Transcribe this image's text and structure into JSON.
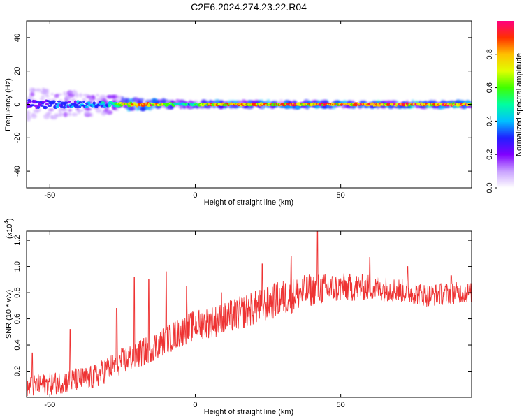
{
  "title": "C2E6.2024.274.23.22.R04",
  "chart_data": [
    {
      "type": "heatmap",
      "xlabel": "Height of straight line (km)",
      "ylabel": "Frequency (Hz)",
      "xlim": [
        -58,
        95
      ],
      "ylim": [
        -50,
        50
      ],
      "xticks": [
        -50,
        0,
        50
      ],
      "yticks": [
        -40,
        -20,
        0,
        20,
        40
      ],
      "colorbar": {
        "label": "Normalized spectral amplitude",
        "range": [
          0,
          1
        ],
        "ticks": [
          0.0,
          0.2,
          0.4,
          0.6,
          0.8
        ],
        "tick_labels": [
          "0.0",
          "0.2",
          "0.4",
          "0.6",
          "0.8"
        ],
        "colormap": [
          "#ffffff",
          "#c8a0ff",
          "#8000ff",
          "#2020ff",
          "#00c0ff",
          "#00ffa0",
          "#40ff00",
          "#e0ff00",
          "#ffc000",
          "#ff3000",
          "#ff0080"
        ]
      },
      "ridge": {
        "frequency_hz": 0,
        "spread_hz": [
          [
            -58,
            6
          ],
          [
            -45,
            5
          ],
          [
            -35,
            4
          ],
          [
            -28,
            3
          ],
          [
            -20,
            2
          ],
          [
            -10,
            1.5
          ],
          [
            0,
            1
          ],
          [
            50,
            1
          ],
          [
            95,
            1
          ]
        ],
        "intensity": [
          [
            -58,
            0.3
          ],
          [
            -45,
            0.35
          ],
          [
            -35,
            0.4
          ],
          [
            -28,
            0.5
          ],
          [
            -24,
            0.85
          ],
          [
            -15,
            0.9
          ],
          [
            -8,
            0.6
          ],
          [
            -2,
            0.5
          ],
          [
            5,
            0.85
          ],
          [
            50,
            0.95
          ],
          [
            95,
            0.95
          ]
        ]
      },
      "grid": false
    },
    {
      "type": "line",
      "xlabel": "Height of straight line (km)",
      "ylabel": "SNR (10 * v/v)",
      "y_multiplier_label": "(x10",
      "y_multiplier_exp": "4",
      "y_multiplier_close": ")",
      "xlim": [
        -58,
        95
      ],
      "ylim": [
        0.0,
        1.27
      ],
      "xticks": [
        -50,
        0,
        50
      ],
      "yticks": [
        0.2,
        0.4,
        0.6,
        0.8,
        1.0,
        1.2
      ],
      "ytick_labels": [
        "0.2",
        "0.4",
        "0.6",
        "0.8",
        "1.0",
        "1.2"
      ],
      "series": [
        {
          "color": "#ee3333",
          "trend": [
            [
              -58,
              0.08
            ],
            [
              -45,
              0.12
            ],
            [
              -35,
              0.15
            ],
            [
              -30,
              0.22
            ],
            [
              -25,
              0.28
            ],
            [
              -20,
              0.32
            ],
            [
              -15,
              0.38
            ],
            [
              -10,
              0.44
            ],
            [
              -5,
              0.5
            ],
            [
              0,
              0.55
            ],
            [
              10,
              0.6
            ],
            [
              20,
              0.68
            ],
            [
              30,
              0.76
            ],
            [
              40,
              0.82
            ],
            [
              50,
              0.84
            ],
            [
              60,
              0.84
            ],
            [
              70,
              0.82
            ],
            [
              80,
              0.78
            ],
            [
              90,
              0.8
            ],
            [
              95,
              0.8
            ]
          ],
          "noise_amplitude": [
            [
              -58,
              0.08
            ],
            [
              -30,
              0.1
            ],
            [
              0,
              0.12
            ],
            [
              30,
              0.14
            ],
            [
              60,
              0.1
            ],
            [
              95,
              0.08
            ]
          ],
          "peaks": [
            [
              -56,
              0.34
            ],
            [
              -43,
              0.52
            ],
            [
              -27,
              0.68
            ],
            [
              -21,
              0.92
            ],
            [
              -16,
              0.9
            ],
            [
              -10,
              0.96
            ],
            [
              -3,
              0.85
            ],
            [
              9,
              0.8
            ],
            [
              23,
              1.02
            ],
            [
              33,
              1.08
            ],
            [
              42,
              1.27
            ],
            [
              60,
              1.07
            ],
            [
              73,
              1.0
            ],
            [
              88,
              0.93
            ]
          ]
        }
      ],
      "grid": false
    }
  ]
}
